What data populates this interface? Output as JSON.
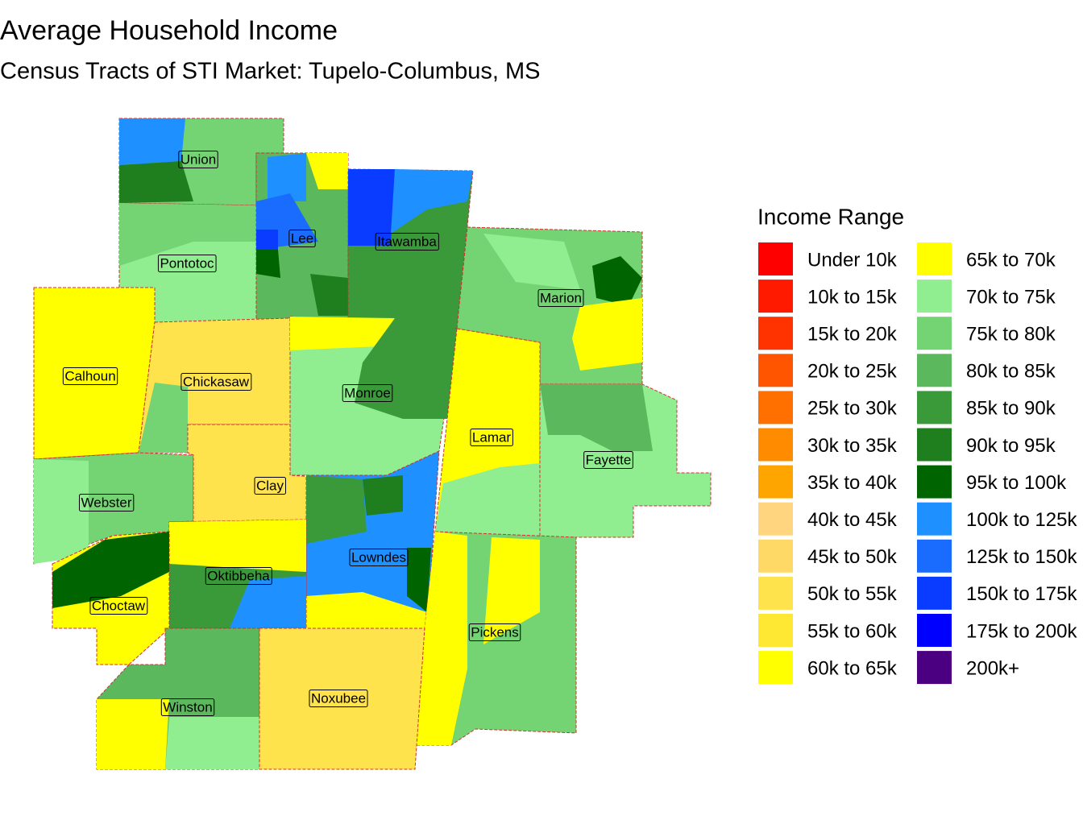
{
  "header": {
    "title": "Average Household Income",
    "subtitle": "Census Tracts of STI Market: Tupelo-Columbus, MS"
  },
  "legend": {
    "title": "Income Range",
    "items": [
      {
        "label": "Under 10k",
        "color": "#ff0000"
      },
      {
        "label": "10k to 15k",
        "color": "#ff1a00"
      },
      {
        "label": "15k to 20k",
        "color": "#ff3300"
      },
      {
        "label": "20k to 25k",
        "color": "#ff5500"
      },
      {
        "label": "25k to 30k",
        "color": "#ff7000"
      },
      {
        "label": "30k to 35k",
        "color": "#ff8c00"
      },
      {
        "label": "35k to 40k",
        "color": "#ffa500"
      },
      {
        "label": "40k to 45k",
        "color": "#ffd580"
      },
      {
        "label": "45k to 50k",
        "color": "#ffd966"
      },
      {
        "label": "50k to 55k",
        "color": "#ffe34d"
      },
      {
        "label": "55k to 60k",
        "color": "#ffe833"
      },
      {
        "label": "60k to 65k",
        "color": "#ffff00"
      },
      {
        "label": "65k to 70k",
        "color": "#ffff00"
      },
      {
        "label": "70k to 75k",
        "color": "#90ee90"
      },
      {
        "label": "75k to 80k",
        "color": "#74d474"
      },
      {
        "label": "80k to 85k",
        "color": "#5cb85c"
      },
      {
        "label": "85k to 90k",
        "color": "#3a9a3a"
      },
      {
        "label": "90k to 95k",
        "color": "#1f7f1f"
      },
      {
        "label": "95k to 100k",
        "color": "#006400"
      },
      {
        "label": "100k to 125k",
        "color": "#1e90ff"
      },
      {
        "label": "125k to 150k",
        "color": "#1a6cff"
      },
      {
        "label": "150k to 175k",
        "color": "#0a3cff"
      },
      {
        "label": "175k to 200k",
        "color": "#0000ff"
      },
      {
        "label": "200k+",
        "color": "#4b0082"
      }
    ]
  },
  "counties": [
    "Union",
    "Lee",
    "Pontotoc",
    "Itawamba",
    "Marion",
    "Calhoun",
    "Chickasaw",
    "Monroe",
    "Lamar",
    "Fayette",
    "Webster",
    "Clay",
    "Lowndes",
    "Oktibbeha",
    "Choctaw",
    "Pickens",
    "Winston",
    "Noxubee"
  ]
}
